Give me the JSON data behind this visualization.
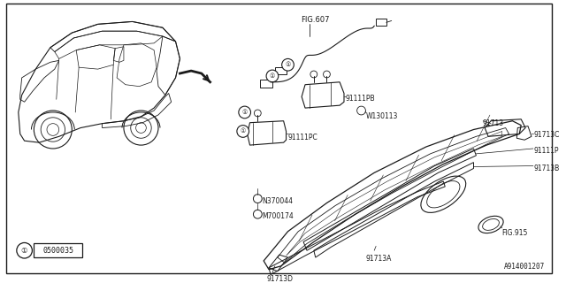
{
  "bg_color": "#ffffff",
  "border_color": "#000000",
  "line_color": "#1a1a1a",
  "text_color": "#1a1a1a",
  "diagram_id": "A914001207",
  "callout_box": {
    "label": "1",
    "code": "0500035"
  },
  "fig_ref_top": "FIG.607",
  "fig_ref_bottom": "FIG.915",
  "font_size_label": 5.5,
  "font_size_fig": 5.5,
  "font_size_diagram_id": 5.5
}
